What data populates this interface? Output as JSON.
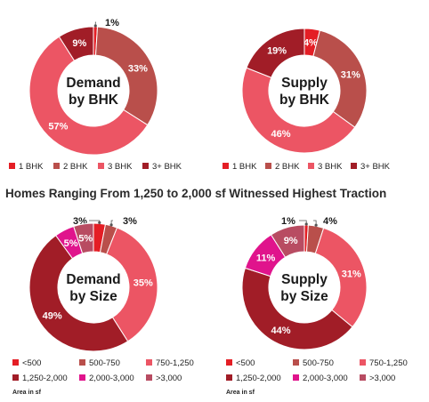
{
  "headline": "Homes Ranging From 1,250 to 2,000 sf Witnessed Highest Traction",
  "area_note": "Area in sf",
  "chart_data": [
    {
      "type": "donut",
      "center_label": [
        "Demand",
        "by BHK"
      ],
      "categories": [
        "1 BHK",
        "2 BHK",
        "3 BHK",
        "3+ BHK"
      ],
      "values": [
        1,
        33,
        57,
        9
      ],
      "value_labels": [
        "1%",
        "33%",
        "57%",
        "9%"
      ],
      "colors": [
        "#e41e25",
        "#b94f4b",
        "#ec5564",
        "#a11d27"
      ]
    },
    {
      "type": "donut",
      "center_label": [
        "Supply",
        "by BHK"
      ],
      "categories": [
        "1 BHK",
        "2 BHK",
        "3 BHK",
        "3+ BHK"
      ],
      "values": [
        4,
        31,
        46,
        19
      ],
      "value_labels": [
        "4%",
        "31%",
        "46%",
        "19%"
      ],
      "colors": [
        "#e41e25",
        "#b94f4b",
        "#ec5564",
        "#a11d27"
      ]
    },
    {
      "type": "donut",
      "center_label": [
        "Demand",
        "by Size"
      ],
      "categories": [
        "<500",
        "500-750",
        "750-1,250",
        "1,250-2,000",
        "2,000-3,000",
        ">3,000"
      ],
      "values": [
        3,
        3,
        35,
        49,
        5,
        5
      ],
      "value_labels": [
        "3%",
        "3%",
        "35%",
        "49%",
        "5%",
        "5%"
      ],
      "colors": [
        "#e41e25",
        "#b94f4b",
        "#ec5564",
        "#a11d27",
        "#e0148c",
        "#b84c62"
      ]
    },
    {
      "type": "donut",
      "center_label": [
        "Supply",
        "by Size"
      ],
      "categories": [
        "<500",
        "500-750",
        "750-1,250",
        "1,250-2,000",
        "2,000-3,000",
        ">3,000"
      ],
      "values": [
        1,
        4,
        31,
        44,
        11,
        9
      ],
      "value_labels": [
        "1%",
        "4%",
        "31%",
        "44%",
        "11%",
        "9%"
      ],
      "colors": [
        "#e41e25",
        "#b94f4b",
        "#ec5564",
        "#a11d27",
        "#e0148c",
        "#b84c62"
      ]
    }
  ]
}
